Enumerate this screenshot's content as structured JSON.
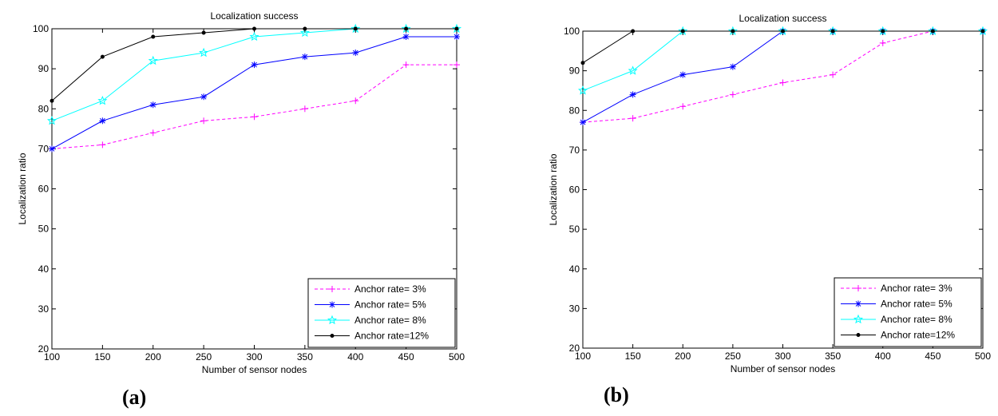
{
  "captions": {
    "a": "(a)",
    "b": "(b)"
  },
  "colors": {
    "s3": "#ff00ff",
    "s5": "#0000ff",
    "s8": "#00ffff",
    "s12": "#000000"
  },
  "chart_data": [
    {
      "type": "line",
      "title": "Localization success",
      "xlabel": "Number of sensor nodes",
      "ylabel": "Localization ratio",
      "xlim": [
        100,
        500
      ],
      "ylim": [
        20,
        100
      ],
      "xticks": [
        100,
        150,
        200,
        250,
        300,
        350,
        400,
        450,
        500
      ],
      "yticks": [
        20,
        30,
        40,
        50,
        60,
        70,
        80,
        90,
        100
      ],
      "grid": false,
      "legend_position": "bottom-right",
      "series": [
        {
          "name": "Anchor rate= 3%",
          "color": "#ff00ff",
          "dash": true,
          "marker": "plus",
          "x": [
            100,
            150,
            200,
            250,
            300,
            350,
            400,
            450,
            500
          ],
          "y": [
            70,
            71,
            74,
            77,
            78,
            80,
            82,
            91,
            91
          ]
        },
        {
          "name": "Anchor rate= 5%",
          "color": "#0000ff",
          "dash": false,
          "marker": "asterisk",
          "x": [
            100,
            150,
            200,
            250,
            300,
            350,
            400,
            450,
            500
          ],
          "y": [
            70,
            77,
            81,
            83,
            91,
            93,
            94,
            98,
            98
          ]
        },
        {
          "name": "Anchor rate= 8%",
          "color": "#00ffff",
          "dash": false,
          "marker": "star",
          "x": [
            100,
            150,
            200,
            250,
            300,
            350,
            400,
            450,
            500
          ],
          "y": [
            77,
            82,
            92,
            94,
            98,
            99,
            100,
            100,
            100
          ]
        },
        {
          "name": "Anchor rate=12%",
          "color": "#000000",
          "dash": false,
          "marker": "dot",
          "x": [
            100,
            150,
            200,
            250,
            300,
            350,
            400,
            450,
            500
          ],
          "y": [
            82,
            93,
            98,
            99,
            100,
            100,
            100,
            100,
            100
          ]
        }
      ]
    },
    {
      "type": "line",
      "title": "Localization success",
      "xlabel": "Number of sensor nodes",
      "ylabel": "Localization ratio",
      "xlim": [
        100,
        500
      ],
      "ylim": [
        20,
        100
      ],
      "xticks": [
        100,
        150,
        200,
        250,
        300,
        350,
        400,
        450,
        500
      ],
      "yticks": [
        20,
        30,
        40,
        50,
        60,
        70,
        80,
        90,
        100
      ],
      "grid": false,
      "legend_position": "bottom-right",
      "series": [
        {
          "name": "Anchor rate= 3%",
          "color": "#ff00ff",
          "dash": true,
          "marker": "plus",
          "x": [
            100,
            150,
            200,
            250,
            300,
            350,
            400,
            450,
            500
          ],
          "y": [
            77,
            78,
            81,
            84,
            87,
            89,
            97,
            100,
            100
          ]
        },
        {
          "name": "Anchor rate= 5%",
          "color": "#0000ff",
          "dash": false,
          "marker": "asterisk",
          "x": [
            100,
            150,
            200,
            250,
            300,
            350,
            400,
            450,
            500
          ],
          "y": [
            77,
            84,
            89,
            91,
            100,
            100,
            100,
            100,
            100
          ]
        },
        {
          "name": "Anchor rate= 8%",
          "color": "#00ffff",
          "dash": false,
          "marker": "star",
          "x": [
            100,
            150,
            200,
            250,
            300,
            350,
            400,
            450,
            500
          ],
          "y": [
            85,
            90,
            100,
            100,
            100,
            100,
            100,
            100,
            100
          ]
        },
        {
          "name": "Anchor rate=12%",
          "color": "#000000",
          "dash": false,
          "marker": "dot",
          "x": [
            100,
            150,
            200,
            250,
            300,
            350,
            400,
            450,
            500
          ],
          "y": [
            92,
            100,
            100,
            100,
            100,
            100,
            100,
            100,
            100
          ]
        }
      ]
    }
  ]
}
